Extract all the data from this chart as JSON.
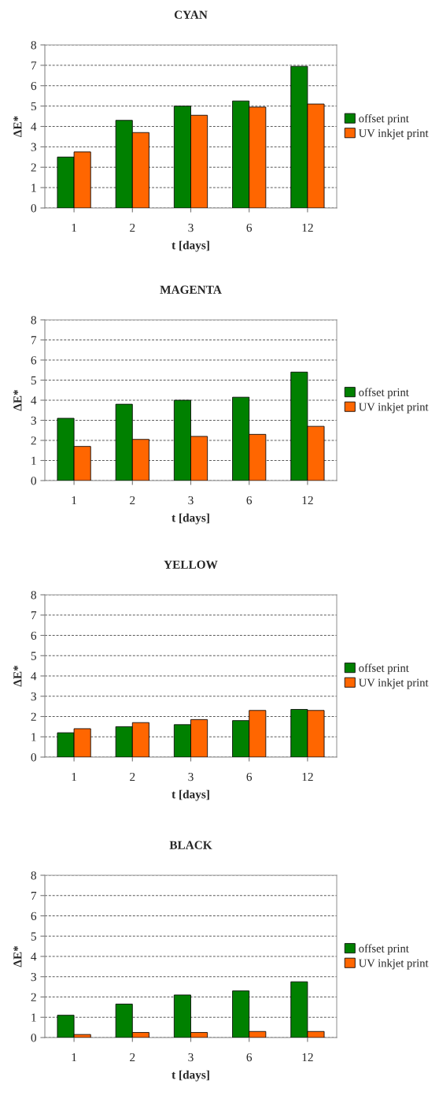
{
  "chart_data": [
    {
      "type": "bar",
      "title": "CYAN",
      "xlabel": "t [days]",
      "ylabel": "ΔE*",
      "categories": [
        "1",
        "2",
        "3",
        "6",
        "12"
      ],
      "ylim": [
        0,
        8
      ],
      "yticks": [
        0,
        1,
        2,
        3,
        4,
        5,
        6,
        7,
        8
      ],
      "grid": "y",
      "legend": "right",
      "series": [
        {
          "name": "offset print",
          "color": "#008000",
          "values": [
            2.5,
            4.3,
            5.0,
            5.25,
            6.95
          ]
        },
        {
          "name": "UV inkjet print",
          "color": "#ff6600",
          "values": [
            2.75,
            3.7,
            4.55,
            4.95,
            5.1
          ]
        }
      ]
    },
    {
      "type": "bar",
      "title": "MAGENTA",
      "xlabel": "t [days]",
      "ylabel": "ΔE*",
      "categories": [
        "1",
        "2",
        "3",
        "6",
        "12"
      ],
      "ylim": [
        0,
        8
      ],
      "yticks": [
        0,
        1,
        2,
        3,
        4,
        5,
        6,
        7,
        8
      ],
      "grid": "y",
      "legend": "right",
      "series": [
        {
          "name": "offset print",
          "color": "#008000",
          "values": [
            3.1,
            3.8,
            4.0,
            4.15,
            5.4
          ]
        },
        {
          "name": "UV inkjet print",
          "color": "#ff6600",
          "values": [
            1.7,
            2.05,
            2.2,
            2.3,
            2.7
          ]
        }
      ]
    },
    {
      "type": "bar",
      "title": "YELLOW",
      "xlabel": "t [days]",
      "ylabel": "ΔE*",
      "categories": [
        "1",
        "2",
        "3",
        "6",
        "12"
      ],
      "ylim": [
        0,
        8
      ],
      "yticks": [
        0,
        1,
        2,
        3,
        4,
        5,
        6,
        7,
        8
      ],
      "grid": "y",
      "legend": "right",
      "series": [
        {
          "name": "offset print",
          "color": "#008000",
          "values": [
            1.2,
            1.5,
            1.6,
            1.8,
            2.35
          ]
        },
        {
          "name": "UV inkjet print",
          "color": "#ff6600",
          "values": [
            1.4,
            1.7,
            1.85,
            2.3,
            2.3
          ]
        }
      ]
    },
    {
      "type": "bar",
      "title": "BLACK",
      "xlabel": "t [days]",
      "ylabel": "ΔE*",
      "categories": [
        "1",
        "2",
        "3",
        "6",
        "12"
      ],
      "ylim": [
        0,
        8
      ],
      "yticks": [
        0,
        1,
        2,
        3,
        4,
        5,
        6,
        7,
        8
      ],
      "grid": "y",
      "legend": "right",
      "series": [
        {
          "name": "offset print",
          "color": "#008000",
          "values": [
            1.1,
            1.65,
            2.1,
            2.3,
            2.75
          ]
        },
        {
          "name": "UV inkjet print",
          "color": "#ff6600",
          "values": [
            0.15,
            0.25,
            0.25,
            0.3,
            0.3
          ]
        }
      ]
    }
  ]
}
